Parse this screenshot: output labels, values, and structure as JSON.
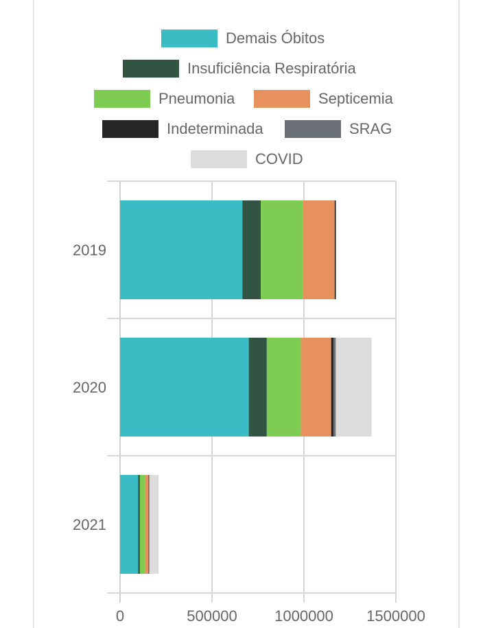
{
  "chart_data": {
    "type": "bar",
    "orientation": "horizontal",
    "stacked": true,
    "categories": [
      "2019",
      "2020",
      "2021"
    ],
    "series": [
      {
        "name": "Demais Óbitos",
        "color": "#3bbcc5",
        "values": [
          665000,
          700000,
          98000
        ]
      },
      {
        "name": "Insuficiência Respiratória",
        "color": "#315443",
        "values": [
          100000,
          98000,
          10000
        ]
      },
      {
        "name": "Pneumonia",
        "color": "#7ecd52",
        "values": [
          228000,
          185000,
          27000
        ]
      },
      {
        "name": "Septicemia",
        "color": "#e7925e",
        "values": [
          174000,
          165000,
          20000
        ]
      },
      {
        "name": "Indeterminada",
        "color": "#262626",
        "values": [
          5000,
          13000,
          2000
        ]
      },
      {
        "name": "SRAG",
        "color": "#6c7178",
        "values": [
          3000,
          12000,
          3000
        ]
      },
      {
        "name": "COVID",
        "color": "#dcdcdc",
        "values": [
          0,
          195000,
          50000
        ]
      }
    ],
    "xlim": [
      0,
      1500000
    ],
    "xticks": [
      "0",
      "500000",
      "1000000",
      "1500000"
    ],
    "grid": true,
    "legend_position": "top",
    "title": "",
    "xlabel": "",
    "ylabel": ""
  }
}
